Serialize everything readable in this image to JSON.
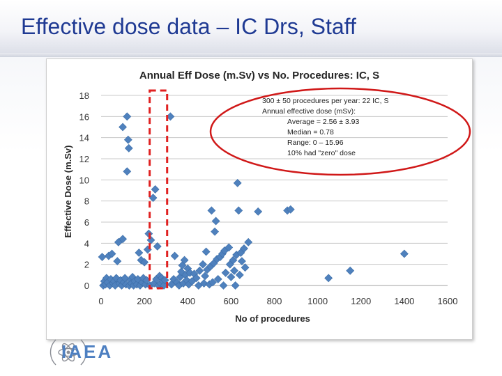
{
  "slide": {
    "title": "Effective dose data – IC Drs, Staff"
  },
  "callout": {
    "line1": "300 ± 50 procedures per year: 22 IC, S",
    "line2": "Annual effective dose (mSv):",
    "line3": "Average = 2.56 ± 3.93",
    "line4": "Median = 0.78",
    "line5": "Range: 0 – 15.96",
    "line6": "10% had \"zero\" dose"
  },
  "logo": {
    "text": "IAEA",
    "icon": "iaea-atom-emblem-icon"
  },
  "colors": {
    "title": "#1f3a93",
    "marker": "#4f81bd",
    "highlight_box": "#e02020",
    "ellipse": "#d01818",
    "logo": "#4d7fc1"
  },
  "chart_data": {
    "type": "scatter",
    "title": "Annual Eff Dose  (m.Sv) vs No. Procedures: IC, S",
    "xlabel": "No of procedures",
    "ylabel": "Effective Dose (m.Sv)",
    "xlim": [
      0,
      1600
    ],
    "ylim": [
      0,
      18
    ],
    "xticks": [
      "0",
      "200",
      "400",
      "600",
      "800",
      "1000",
      "1200",
      "1400",
      "1600"
    ],
    "yticks": [
      "0",
      "2",
      "4",
      "6",
      "8",
      "10",
      "12",
      "14",
      "16",
      "18"
    ],
    "grid": "horizontal",
    "legend": "none",
    "annotations": [
      "dashed red box around 250–350 procedures",
      "red ellipse around summary text"
    ],
    "highlight_range": [
      250,
      350
    ],
    "series": [
      {
        "points": [
          [
            5,
            2.7
          ],
          [
            10,
            0.0
          ],
          [
            15,
            0.4
          ],
          [
            20,
            0.1
          ],
          [
            25,
            0.7
          ],
          [
            30,
            0.3
          ],
          [
            35,
            2.8
          ],
          [
            40,
            0.0
          ],
          [
            45,
            0.6
          ],
          [
            50,
            3.0
          ],
          [
            55,
            0.2
          ],
          [
            60,
            0.4
          ],
          [
            65,
            0.0
          ],
          [
            70,
            0.7
          ],
          [
            75,
            2.3
          ],
          [
            80,
            4.1
          ],
          [
            85,
            0.2
          ],
          [
            90,
            0.5
          ],
          [
            95,
            0.0
          ],
          [
            100,
            4.4
          ],
          [
            105,
            0.3
          ],
          [
            110,
            0.7
          ],
          [
            115,
            0.1
          ],
          [
            100,
            15.0
          ],
          [
            120,
            16.0
          ],
          [
            125,
            13.8
          ],
          [
            128,
            13.0
          ],
          [
            120,
            10.8
          ],
          [
            130,
            0.0
          ],
          [
            135,
            0.5
          ],
          [
            140,
            0.2
          ],
          [
            145,
            0.8
          ],
          [
            150,
            0.0
          ],
          [
            155,
            0.4
          ],
          [
            165,
            0.1
          ],
          [
            170,
            0.6
          ],
          [
            175,
            3.1
          ],
          [
            180,
            0.0
          ],
          [
            185,
            2.4
          ],
          [
            190,
            0.3
          ],
          [
            195,
            0.7
          ],
          [
            200,
            2.2
          ],
          [
            205,
            0.1
          ],
          [
            210,
            0.5
          ],
          [
            215,
            3.4
          ],
          [
            220,
            4.9
          ],
          [
            225,
            0.0
          ],
          [
            230,
            4.3
          ],
          [
            240,
            8.3
          ],
          [
            245,
            0.2
          ],
          [
            250,
            9.1
          ],
          [
            255,
            0.6
          ],
          [
            260,
            3.7
          ],
          [
            265,
            0.0
          ],
          [
            270,
            0.9
          ],
          [
            275,
            0.2
          ],
          [
            280,
            0.7
          ],
          [
            285,
            0.4
          ],
          [
            290,
            0.0
          ],
          [
            295,
            0.5
          ],
          [
            320,
            16.0
          ],
          [
            325,
            0.1
          ],
          [
            335,
            0.6
          ],
          [
            340,
            2.8
          ],
          [
            350,
            0.3
          ],
          [
            360,
            0.0
          ],
          [
            365,
            0.8
          ],
          [
            370,
            1.3
          ],
          [
            375,
            1.9
          ],
          [
            380,
            0.2
          ],
          [
            385,
            2.4
          ],
          [
            390,
            1.0
          ],
          [
            395,
            0.5
          ],
          [
            400,
            1.6
          ],
          [
            405,
            0.1
          ],
          [
            410,
            1.2
          ],
          [
            420,
            0.4
          ],
          [
            430,
            1.1
          ],
          [
            440,
            0.7
          ],
          [
            450,
            0.0
          ],
          [
            455,
            1.4
          ],
          [
            470,
            2.0
          ],
          [
            475,
            0.2
          ],
          [
            480,
            0.9
          ],
          [
            485,
            3.2
          ],
          [
            490,
            1.5
          ],
          [
            500,
            0.1
          ],
          [
            505,
            1.8
          ],
          [
            510,
            7.1
          ],
          [
            515,
            0.3
          ],
          [
            520,
            2.1
          ],
          [
            525,
            5.1
          ],
          [
            530,
            6.1
          ],
          [
            535,
            2.5
          ],
          [
            540,
            0.6
          ],
          [
            550,
            2.7
          ],
          [
            560,
            3.0
          ],
          [
            565,
            0.0
          ],
          [
            570,
            3.3
          ],
          [
            575,
            1.2
          ],
          [
            590,
            3.6
          ],
          [
            595,
            2.0
          ],
          [
            600,
            0.8
          ],
          [
            610,
            2.4
          ],
          [
            615,
            1.4
          ],
          [
            620,
            0.0
          ],
          [
            625,
            2.9
          ],
          [
            630,
            9.7
          ],
          [
            635,
            7.1
          ],
          [
            640,
            1.0
          ],
          [
            645,
            3.1
          ],
          [
            650,
            2.3
          ],
          [
            660,
            3.5
          ],
          [
            665,
            1.7
          ],
          [
            680,
            4.1
          ],
          [
            725,
            7.0
          ],
          [
            860,
            7.1
          ],
          [
            875,
            7.2
          ],
          [
            1050,
            0.7
          ],
          [
            1150,
            1.4
          ],
          [
            1400,
            3.0
          ]
        ]
      }
    ]
  }
}
